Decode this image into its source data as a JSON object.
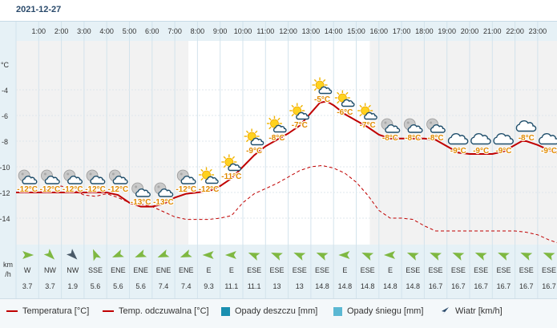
{
  "header": {
    "date": "2021-12-27"
  },
  "chart_data": {
    "type": "line",
    "hours": [
      "1:00",
      "2:00",
      "3:00",
      "4:00",
      "5:00",
      "6:00",
      "7:00",
      "8:00",
      "9:00",
      "10:00",
      "11:00",
      "12:00",
      "13:00",
      "14:00",
      "15:00",
      "16:00",
      "17:00",
      "18:00",
      "19:00",
      "20:00",
      "21:00",
      "22:00",
      "23:00"
    ],
    "y_axis": {
      "unit": "°C",
      "ticks": [
        -4,
        -6,
        -8,
        -10,
        -12,
        -14
      ],
      "ylim": [
        -15.5,
        -1.5
      ]
    },
    "wind_unit": "km\n/h",
    "temperature_hourly": [
      -12,
      -12,
      -12,
      -12,
      -12,
      -13,
      -13,
      -12,
      -12,
      -11,
      -9,
      -8,
      -7,
      -5,
      -6,
      -7,
      -8,
      -8,
      -8,
      -9,
      -9,
      -9,
      -8,
      -9
    ],
    "temperature_series": [
      [
        0,
        -12
      ],
      [
        1,
        -12
      ],
      [
        2,
        -12
      ],
      [
        3,
        -12
      ],
      [
        4,
        -12
      ],
      [
        4.5,
        -12.2
      ],
      [
        5,
        -12.8
      ],
      [
        5.5,
        -13.1
      ],
      [
        6,
        -13.1
      ],
      [
        6.5,
        -12.9
      ],
      [
        7,
        -12.4
      ],
      [
        7.5,
        -12.1
      ],
      [
        8,
        -12
      ],
      [
        8.5,
        -11.9
      ],
      [
        9,
        -11.5
      ],
      [
        9.5,
        -10.9
      ],
      [
        10,
        -10
      ],
      [
        10.5,
        -9.1
      ],
      [
        11,
        -8.4
      ],
      [
        11.5,
        -7.9
      ],
      [
        12,
        -7.4
      ],
      [
        12.5,
        -6.8
      ],
      [
        13,
        -5.8
      ],
      [
        13.4,
        -5
      ],
      [
        13.7,
        -4.9
      ],
      [
        14,
        -5.2
      ],
      [
        14.5,
        -5.9
      ],
      [
        15,
        -6.4
      ],
      [
        15.5,
        -6.9
      ],
      [
        16,
        -7.5
      ],
      [
        16.5,
        -7.8
      ],
      [
        17,
        -7.8
      ],
      [
        17.5,
        -7.8
      ],
      [
        18,
        -7.8
      ],
      [
        18.5,
        -7.9
      ],
      [
        19,
        -8.4
      ],
      [
        19.5,
        -8.9
      ],
      [
        20,
        -9
      ],
      [
        20.5,
        -9
      ],
      [
        21,
        -9
      ],
      [
        21.5,
        -8.8
      ],
      [
        22,
        -8.3
      ],
      [
        22.3,
        -8
      ],
      [
        22.5,
        -8
      ],
      [
        23,
        -8.3
      ],
      [
        23.5,
        -8.7
      ],
      [
        24,
        -9
      ]
    ],
    "feels_like_series": [
      [
        0,
        -12
      ],
      [
        1,
        -12
      ],
      [
        1.5,
        -11.7
      ],
      [
        2,
        -11.5
      ],
      [
        2.5,
        -11.8
      ],
      [
        3,
        -12.2
      ],
      [
        3.5,
        -12.3
      ],
      [
        4,
        -12.1
      ],
      [
        4.5,
        -12.4
      ],
      [
        5,
        -12.8
      ],
      [
        5.5,
        -12.9
      ],
      [
        6,
        -13.1
      ],
      [
        6.5,
        -13.5
      ],
      [
        7,
        -13.9
      ],
      [
        7.5,
        -14.1
      ],
      [
        8,
        -14.1
      ],
      [
        8.5,
        -14.1
      ],
      [
        9,
        -14
      ],
      [
        9.5,
        -13.8
      ],
      [
        10,
        -12.8
      ],
      [
        10.5,
        -12.1
      ],
      [
        11,
        -11.7
      ],
      [
        11.5,
        -11.3
      ],
      [
        12,
        -10.8
      ],
      [
        12.5,
        -10.3
      ],
      [
        13,
        -10
      ],
      [
        13.5,
        -9.9
      ],
      [
        14,
        -10.1
      ],
      [
        14.5,
        -10.5
      ],
      [
        15,
        -11.2
      ],
      [
        15.5,
        -12.2
      ],
      [
        16,
        -13.4
      ],
      [
        16.5,
        -14
      ],
      [
        17,
        -14
      ],
      [
        17.5,
        -14.1
      ],
      [
        18,
        -14.6
      ],
      [
        18.5,
        -15
      ],
      [
        19,
        -15
      ],
      [
        20,
        -15
      ],
      [
        21,
        -15
      ],
      [
        22,
        -15
      ],
      [
        22.5,
        -15.1
      ],
      [
        23,
        -15.3
      ],
      [
        23.5,
        -15.7
      ],
      [
        24,
        -16
      ]
    ],
    "weather_icons": [
      "moon-cloud",
      "moon-cloud",
      "moon-cloud",
      "moon-cloud",
      "moon-cloud",
      "moon-cloud",
      "moon-cloud",
      "moon-cloud",
      "sun-cloud",
      "sun-cloud",
      "sun-cloud",
      "sun-cloud",
      "sun-cloud",
      "sun-cloud",
      "sun-cloud",
      "sun-cloud",
      "moon-cloud",
      "moon-cloud",
      "moon-cloud",
      "cloud",
      "cloud",
      "cloud",
      "cloud",
      "cloud"
    ],
    "wind": {
      "directions": [
        "W",
        "NW",
        "NW",
        "SSE",
        "ENE",
        "ENE",
        "ENE",
        "ENE",
        "E",
        "E",
        "ESE",
        "ESE",
        "ESE",
        "ESE",
        "E",
        "ESE",
        "E",
        "ESE",
        "ESE",
        "ESE",
        "ESE",
        "ESE",
        "ESE",
        "ESE"
      ],
      "speeds": [
        "3.7",
        "3.7",
        "1.9",
        "5.6",
        "5.6",
        "5.6",
        "7.4",
        "7.4",
        "9.3",
        "11.1",
        "11.1",
        "13",
        "13",
        "14.8",
        "14.8",
        "14.8",
        "14.8",
        "14.8",
        "16.7",
        "16.7",
        "16.7",
        "16.7",
        "16.7",
        "16.7"
      ]
    },
    "colors": {
      "temperature": "#c00000",
      "feels_like": "#c00000",
      "rain": "#1a8fb0",
      "snow": "#5bb8d3",
      "wind_arrow": "#7fb842",
      "wind_arrow_dark": "#4a5a68",
      "label": "#e08a00",
      "night_band": "#ececec",
      "panel": "#e6f1f6"
    }
  },
  "legend": {
    "temperature": "Temperatura [°C]",
    "feels_like": "Temp. odczuwalna [°C]",
    "rain": "Opady deszczu [mm]",
    "snow": "Opady śniegu [mm]",
    "wind": "Wiatr [km/h]"
  }
}
